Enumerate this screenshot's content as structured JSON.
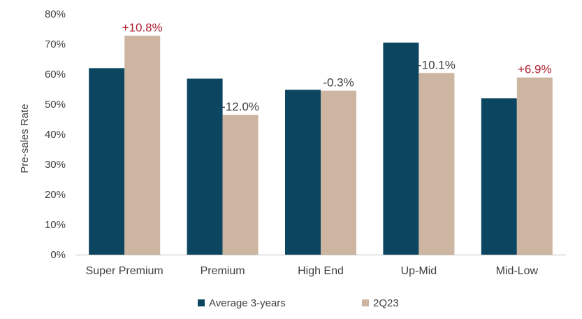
{
  "chart_data": {
    "type": "bar",
    "categories": [
      "Super Premium",
      "Premium",
      "High End",
      "Up-Mid",
      "Mid-Low"
    ],
    "series": [
      {
        "name": "Average 3-years",
        "color": "#0b4560",
        "values": [
          62.0,
          58.5,
          54.8,
          70.5,
          52.0
        ]
      },
      {
        "name": "2Q23",
        "color": "#cdb6a1",
        "values": [
          72.8,
          46.5,
          54.5,
          60.4,
          58.9
        ]
      }
    ],
    "data_labels": [
      {
        "category": "Super Premium",
        "series": "2Q23",
        "text": "+10.8%",
        "color": "#b01e2e"
      },
      {
        "category": "Premium",
        "series": "2Q23",
        "text": "-12.0%",
        "color": "#404040"
      },
      {
        "category": "High End",
        "series": "2Q23",
        "text": "-0.3%",
        "color": "#404040"
      },
      {
        "category": "Up-Mid",
        "series": "2Q23",
        "text": "-10.1%",
        "color": "#404040"
      },
      {
        "category": "Mid-Low",
        "series": "2Q23",
        "text": "+6.9%",
        "color": "#b01e2e"
      }
    ],
    "ylabel": "Pre-sales Rate",
    "xlabel": "",
    "ylim": [
      0,
      80
    ],
    "yticks": [
      0,
      10,
      20,
      30,
      40,
      50,
      60,
      70,
      80
    ],
    "ytick_labels": [
      "0%",
      "10%",
      "20%",
      "30%",
      "40%",
      "50%",
      "60%",
      "70%",
      "80%"
    ],
    "grid": false,
    "legend_position": "bottom"
  }
}
